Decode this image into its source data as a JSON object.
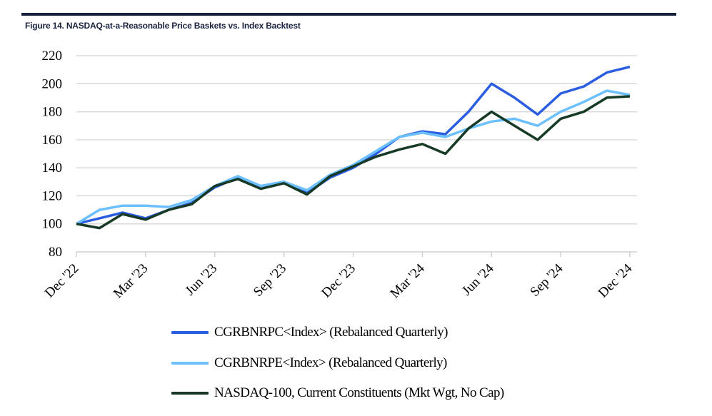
{
  "title": "Figure 14. NASDAQ-at-a-Reasonable Price Baskets vs. Index Backtest",
  "chart_data": {
    "type": "line",
    "title": "Figure 14. NASDAQ-at-a-Reasonable Price Baskets vs. Index Backtest",
    "xlabel": "",
    "ylabel": "",
    "ylim": [
      80,
      220
    ],
    "yticks": [
      80,
      100,
      120,
      140,
      160,
      180,
      200,
      220
    ],
    "grid": true,
    "legend_position": "bottom",
    "xtick_labels": [
      "Dec '22",
      "Mar '23",
      "Jun '23",
      "Sep '23",
      "Dec '23",
      "Mar '24",
      "Jun '24",
      "Sep '24",
      "Dec '24"
    ],
    "x": [
      "Dec '22",
      "Jan '23",
      "Feb '23",
      "Mar '23",
      "Apr '23",
      "May '23",
      "Jun '23",
      "Jul '23",
      "Aug '23",
      "Sep '23",
      "Oct '23",
      "Nov '23",
      "Dec '23",
      "Jan '24",
      "Feb '24",
      "Mar '24",
      "Apr '24",
      "May '24",
      "Jun '24",
      "Jul '24",
      "Aug '24",
      "Sep '24",
      "Oct '24",
      "Nov '24",
      "Dec '24"
    ],
    "series": [
      {
        "name": "CGRBNRPC<Index> (Rebalanced Quarterly)",
        "color": "#2a5de0",
        "values": [
          100,
          104,
          108,
          104,
          110,
          115,
          126,
          133,
          127,
          130,
          122,
          133,
          140,
          150,
          162,
          166,
          164,
          180,
          200,
          190,
          178,
          193,
          198,
          208,
          212
        ]
      },
      {
        "name": "CGRBNRPE<Index> (Rebalanced Quarterly)",
        "color": "#6cc0ff",
        "values": [
          100,
          110,
          113,
          113,
          112,
          117,
          127,
          134,
          127,
          130,
          124,
          135,
          142,
          152,
          162,
          165,
          162,
          168,
          173,
          175,
          170,
          180,
          187,
          195,
          192
        ]
      },
      {
        "name": "NASDAQ-100, Current Constituents (Mkt Wgt, No Cap)",
        "color": "#173a26",
        "values": [
          100,
          97,
          107,
          103,
          110,
          114,
          127,
          132,
          125,
          129,
          121,
          134,
          141,
          148,
          153,
          157,
          150,
          168,
          180,
          170,
          160,
          175,
          180,
          190,
          191
        ]
      }
    ]
  }
}
